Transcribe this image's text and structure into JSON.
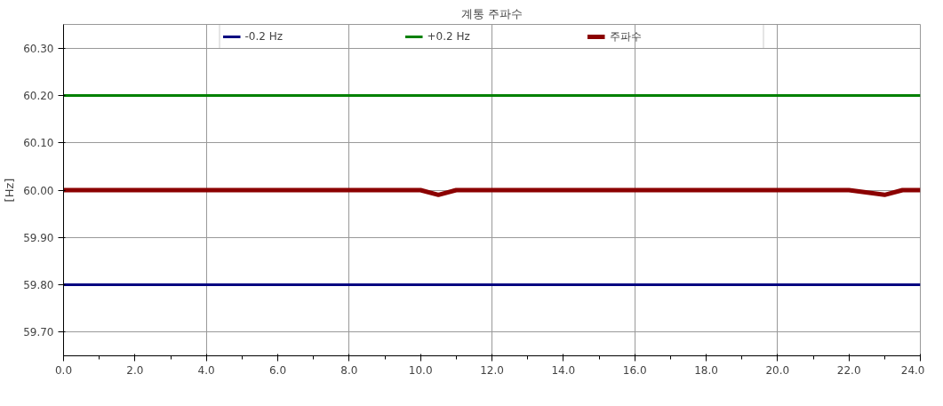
{
  "chart_data": {
    "type": "line",
    "title": "계통 주파수",
    "ylabel": "[Hz]",
    "xlim": [
      0,
      24
    ],
    "ylim": [
      59.65,
      60.35
    ],
    "xticks": [
      {
        "value": 0,
        "label": "0.0"
      },
      {
        "value": 2,
        "label": "2.0"
      },
      {
        "value": 4,
        "label": "4.0"
      },
      {
        "value": 6,
        "label": "6.0"
      },
      {
        "value": 8,
        "label": "8.0"
      },
      {
        "value": 10,
        "label": "10.0"
      },
      {
        "value": 12,
        "label": "12.0"
      },
      {
        "value": 14,
        "label": "14.0"
      },
      {
        "value": 16,
        "label": "16.0"
      },
      {
        "value": 18,
        "label": "18.0"
      },
      {
        "value": 20,
        "label": "20.0"
      },
      {
        "value": 22,
        "label": "22.0"
      },
      {
        "value": 24,
        "label": "24.0"
      }
    ],
    "yticks": [
      {
        "value": 59.7,
        "label": "59.70"
      },
      {
        "value": 59.8,
        "label": "59.80"
      },
      {
        "value": 59.9,
        "label": "59.90"
      },
      {
        "value": 60.0,
        "label": "60.00"
      },
      {
        "value": 60.1,
        "label": "60.10"
      },
      {
        "value": 60.2,
        "label": "60.20"
      },
      {
        "value": 60.3,
        "label": "60.30"
      }
    ],
    "grid": true,
    "legend": "top",
    "marker": "none",
    "line_style": "solid",
    "series": [
      {
        "name": "-0.2 Hz",
        "color": "#000080",
        "x": [
          0,
          24
        ],
        "values": [
          59.8,
          59.8
        ]
      },
      {
        "name": "+0.2 Hz",
        "color": "#008000",
        "x": [
          0,
          24
        ],
        "values": [
          60.2,
          60.2
        ]
      },
      {
        "name": "주파수",
        "color": "#8b0000",
        "x": [
          0,
          1,
          2,
          3,
          4,
          5,
          6,
          7,
          8,
          9,
          10,
          10.5,
          11,
          12,
          13,
          14,
          15,
          16,
          17,
          18,
          19,
          20,
          21,
          22,
          23,
          23.5,
          24
        ],
        "values": [
          60.0,
          60.0,
          60.0,
          60.0,
          60.0,
          60.0,
          60.0,
          60.0,
          60.0,
          60.0,
          60.0,
          59.99,
          60.0,
          60.0,
          60.0,
          60.0,
          60.0,
          60.0,
          60.0,
          60.0,
          60.0,
          60.0,
          60.0,
          60.0,
          59.99,
          60.0,
          60.0
        ]
      }
    ]
  }
}
